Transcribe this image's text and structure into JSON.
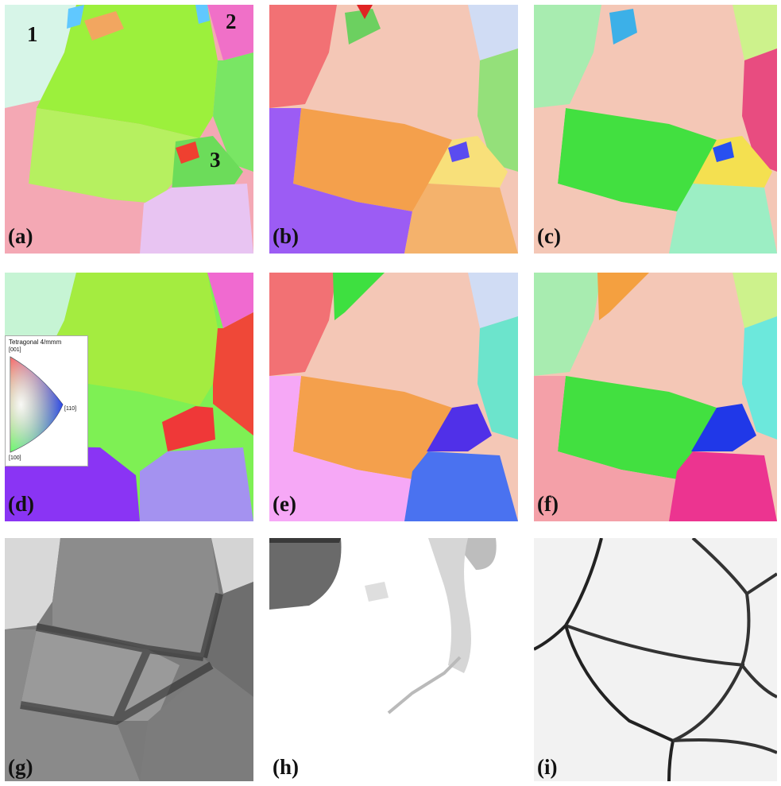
{
  "panels": [
    {
      "label": "(a)"
    },
    {
      "label": "(b)"
    },
    {
      "label": "(c)"
    },
    {
      "label": "(d)"
    },
    {
      "label": "(e)"
    },
    {
      "label": "(f)"
    },
    {
      "label": "(g)"
    },
    {
      "label": "(h)"
    },
    {
      "label": "(i)"
    }
  ],
  "grain_numbers": [
    "1",
    "2",
    "3"
  ],
  "legend": {
    "title": "Tetragonal 4/mmm",
    "dir_001": "[001]",
    "dir_110": "[110]",
    "dir_100": "[100]"
  }
}
